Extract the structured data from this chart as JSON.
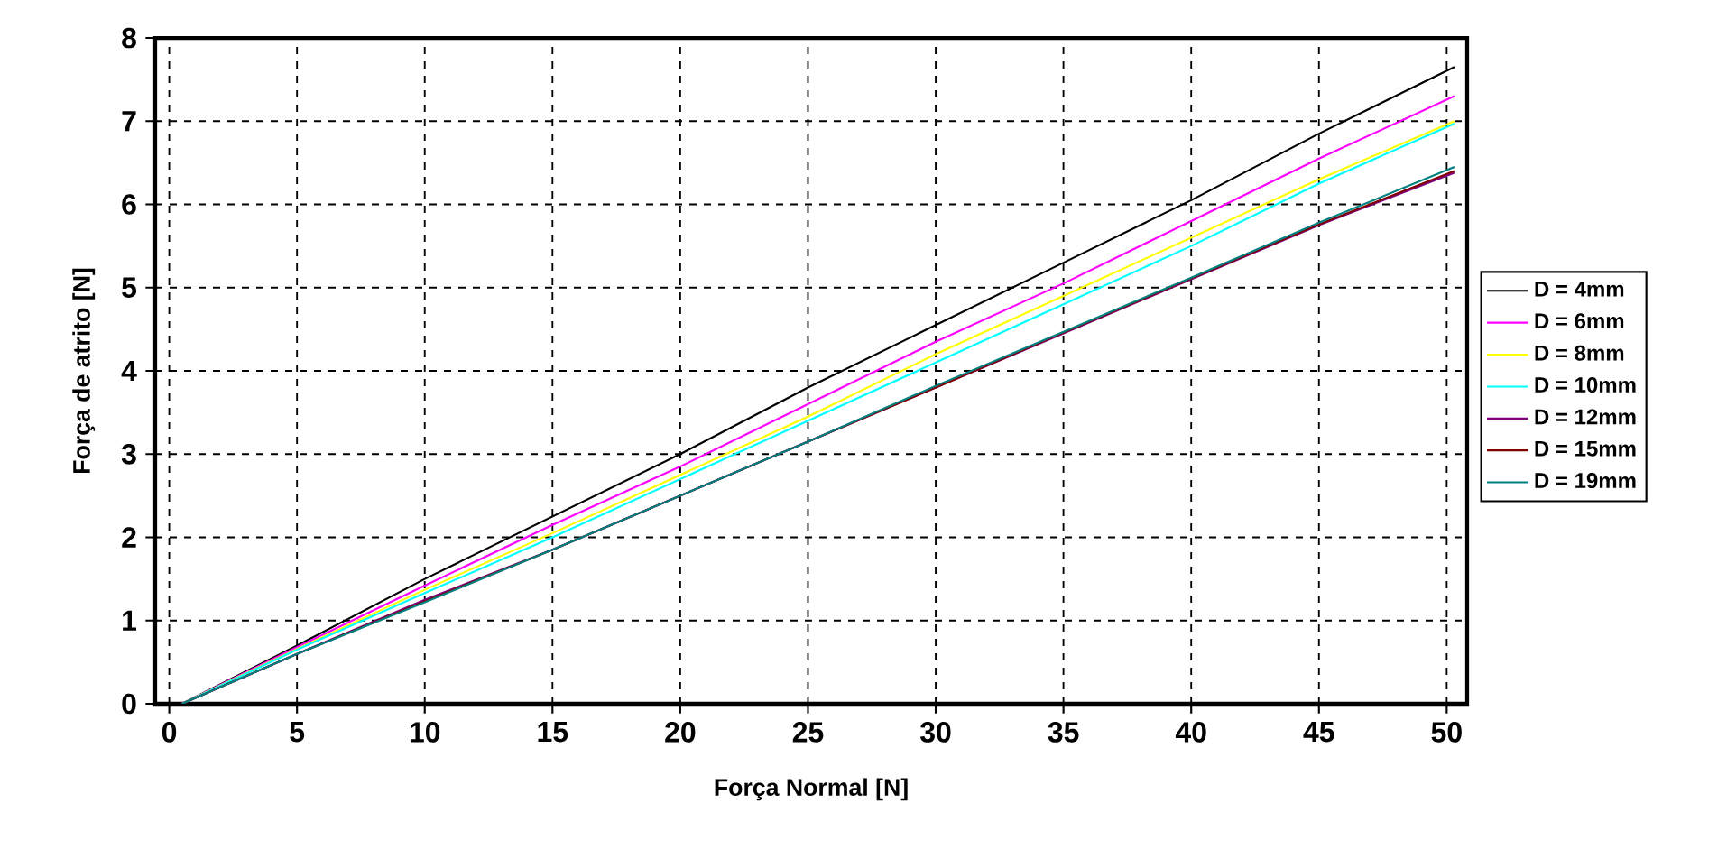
{
  "chart_data": {
    "type": "line",
    "xlabel": "Força Normal [N]",
    "ylabel": "Força de atrito [N]",
    "xlim": [
      -0.55,
      50.8
    ],
    "ylim": [
      0,
      8
    ],
    "xticks": [
      0,
      5,
      10,
      15,
      20,
      25,
      30,
      35,
      40,
      45,
      50
    ],
    "yticks": [
      0,
      1,
      2,
      3,
      4,
      5,
      6,
      7,
      8
    ],
    "grid": true,
    "legend": "right",
    "marker": "none",
    "line_style": "solid",
    "x": [
      0.5,
      5,
      10,
      15,
      20,
      25,
      30,
      35,
      40,
      45,
      50.3
    ],
    "series": [
      {
        "name": "D =  4mm",
        "color": "#000000",
        "values": [
          0,
          0.7,
          1.5,
          2.25,
          3.0,
          3.8,
          4.55,
          5.3,
          6.05,
          6.85,
          7.65
        ]
      },
      {
        "name": "D =  6mm",
        "color": "#ff00ff",
        "values": [
          0,
          0.68,
          1.42,
          2.15,
          2.85,
          3.6,
          4.35,
          5.05,
          5.8,
          6.55,
          7.3
        ]
      },
      {
        "name": "D =  8mm",
        "color": "#ffff00",
        "values": [
          0,
          0.66,
          1.37,
          2.05,
          2.75,
          3.45,
          4.2,
          4.9,
          5.6,
          6.3,
          7.0
        ]
      },
      {
        "name": "D = 10mm",
        "color": "#00ffff",
        "values": [
          0,
          0.65,
          1.33,
          2.0,
          2.7,
          3.4,
          4.1,
          4.8,
          5.5,
          6.25,
          6.97
        ]
      },
      {
        "name": "D = 12mm",
        "color": "#800080",
        "values": [
          0,
          0.6,
          1.25,
          1.85,
          2.5,
          3.15,
          3.8,
          4.45,
          5.1,
          5.75,
          6.38
        ]
      },
      {
        "name": "D = 15mm",
        "color": "#800000",
        "values": [
          0,
          0.6,
          1.23,
          1.85,
          2.5,
          3.15,
          3.8,
          4.46,
          5.11,
          5.76,
          6.4
        ]
      },
      {
        "name": "D = 19mm",
        "color": "#008080",
        "values": [
          0,
          0.6,
          1.22,
          1.85,
          2.5,
          3.15,
          3.82,
          4.47,
          5.12,
          5.78,
          6.45
        ]
      }
    ]
  }
}
